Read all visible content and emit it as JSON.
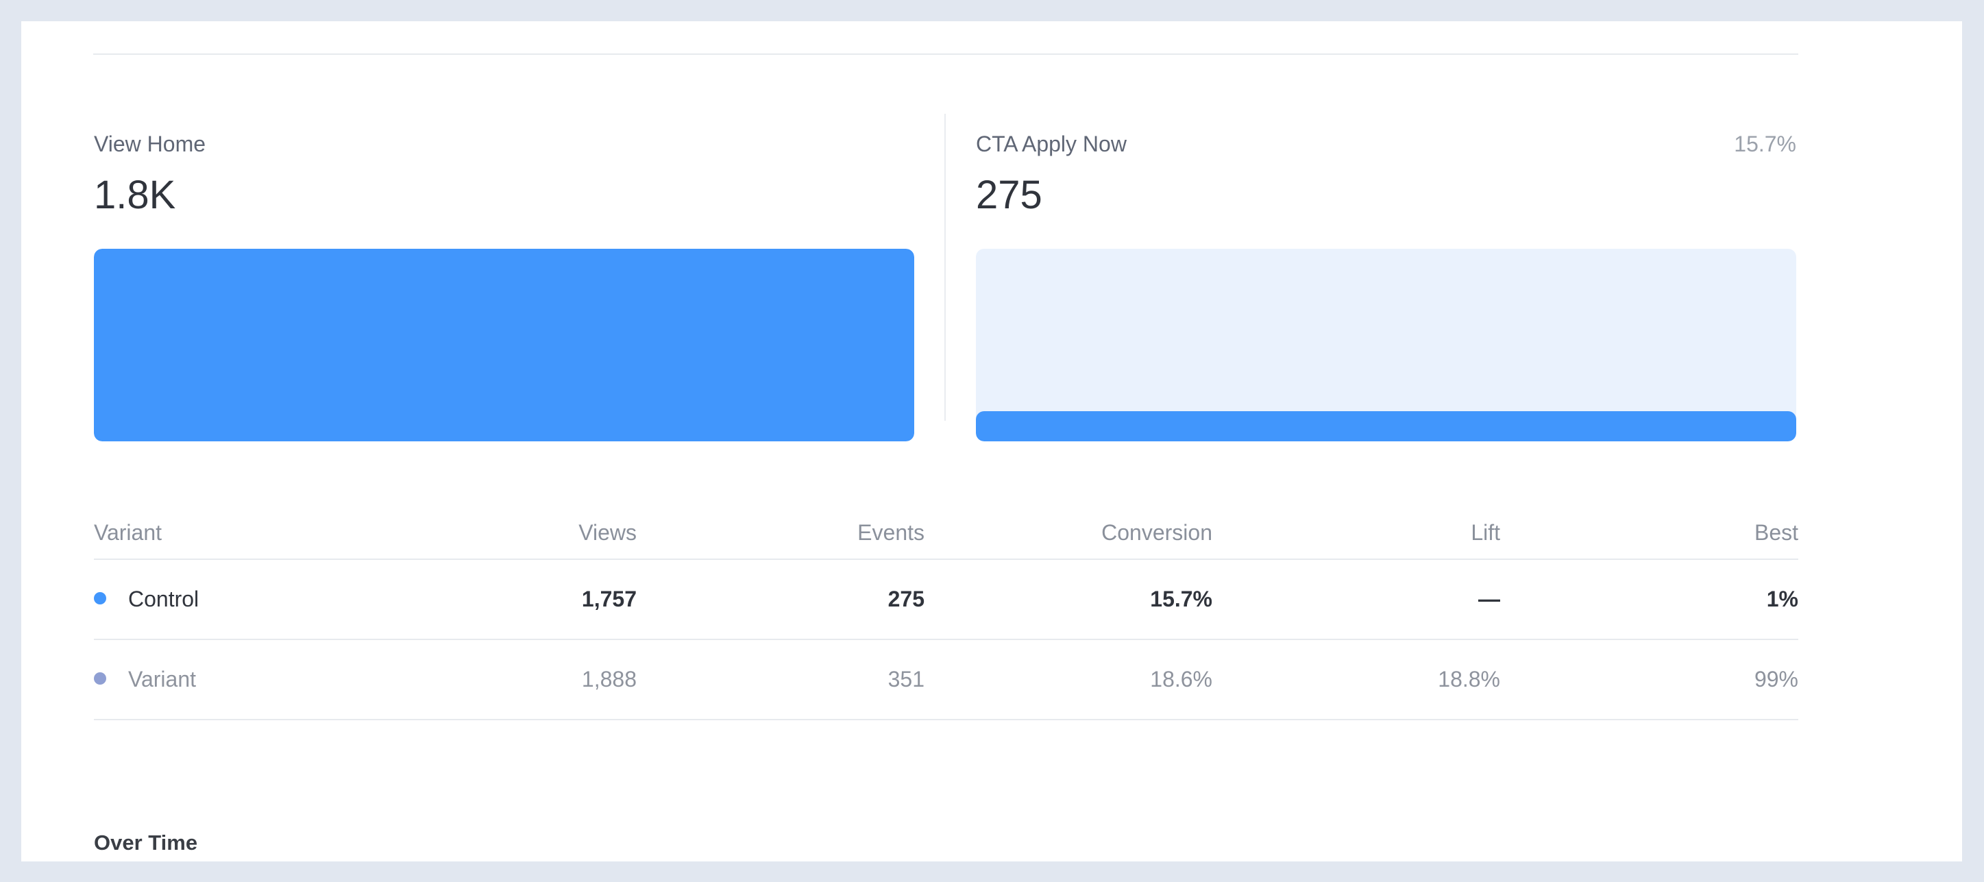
{
  "funnel": {
    "steps": [
      {
        "label": "View Home",
        "value": "1.8K",
        "rate": "",
        "fill_fraction": 1.0
      },
      {
        "label": "CTA Apply Now",
        "value": "275",
        "rate": "15.7%",
        "fill_fraction": 0.157
      }
    ]
  },
  "table": {
    "headers": {
      "variant": "Variant",
      "views": "Views",
      "events": "Events",
      "conversion": "Conversion",
      "lift": "Lift",
      "best": "Best"
    },
    "rows": [
      {
        "variant": "Control",
        "views": "1,757",
        "events": "275",
        "conversion": "15.7%",
        "lift": "—",
        "best": "1%",
        "dot_color": "#4196fc"
      },
      {
        "variant": "Variant",
        "views": "1,888",
        "events": "351",
        "conversion": "18.6%",
        "lift": "18.8%",
        "best": "99%",
        "dot_color": "#8f9fd3"
      }
    ]
  },
  "section": {
    "over_time": "Over Time"
  },
  "colors": {
    "accent": "#4196fc",
    "bar_track": "#eaf2fd",
    "background": "#e1e7f0"
  }
}
